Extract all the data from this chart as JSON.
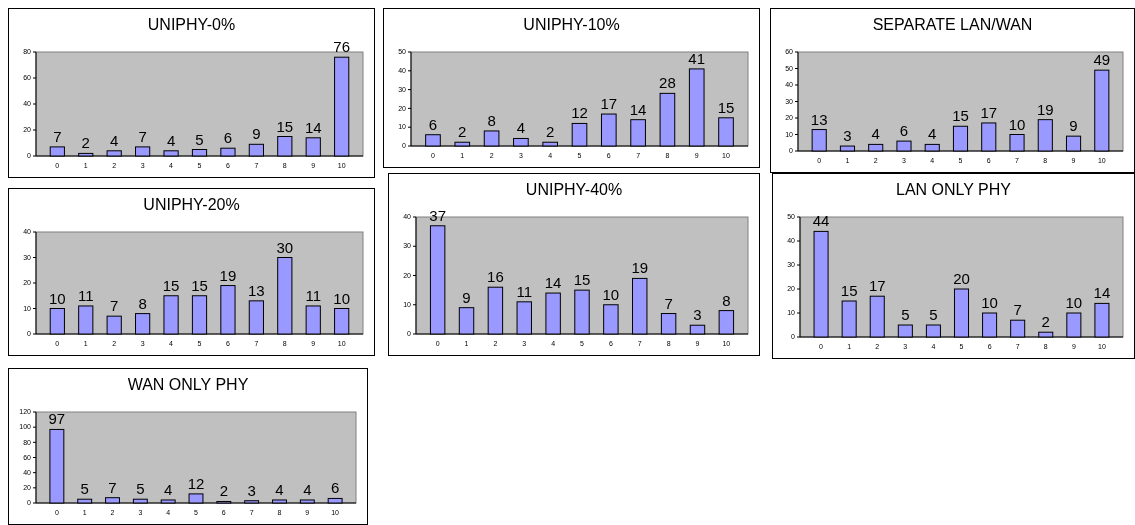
{
  "chart_data": [
    {
      "type": "bar",
      "title": "UNIPHY-0%",
      "categories": [
        "0",
        "1",
        "2",
        "3",
        "4",
        "5",
        "6",
        "7",
        "8",
        "9",
        "10"
      ],
      "values": [
        7,
        2,
        4,
        7,
        4,
        5,
        6,
        9,
        15,
        14,
        76
      ],
      "color": "#9999ff",
      "ylim": [
        0,
        80
      ],
      "yticks": [
        0,
        20,
        40,
        60,
        80
      ],
      "data_labels": true
    },
    {
      "type": "bar",
      "title": "UNIPHY-10%",
      "categories": [
        "0",
        "1",
        "2",
        "3",
        "4",
        "5",
        "6",
        "7",
        "8",
        "9",
        "10"
      ],
      "values": [
        6,
        2,
        8,
        4,
        2,
        12,
        17,
        14,
        28,
        41,
        15
      ],
      "color": "#9999ff",
      "ylim": [
        0,
        50
      ],
      "yticks": [
        0,
        10,
        20,
        30,
        40,
        50
      ],
      "data_labels": true
    },
    {
      "type": "bar",
      "title": "SEPARATE LAN/WAN",
      "categories": [
        "0",
        "1",
        "2",
        "3",
        "4",
        "5",
        "6",
        "7",
        "8",
        "9",
        "10"
      ],
      "values": [
        13,
        3,
        4,
        6,
        4,
        15,
        17,
        10,
        19,
        9,
        49
      ],
      "color": "#9999ff",
      "ylim": [
        0,
        60
      ],
      "yticks": [
        0,
        10,
        20,
        30,
        40,
        50,
        60
      ],
      "data_labels": true
    },
    {
      "type": "bar",
      "title": "UNIPHY-20%",
      "categories": [
        "0",
        "1",
        "2",
        "3",
        "4",
        "5",
        "6",
        "7",
        "8",
        "9",
        "10"
      ],
      "values": [
        10,
        11,
        7,
        8,
        15,
        15,
        19,
        13,
        30,
        11,
        10
      ],
      "color": "#9999ff",
      "ylim": [
        0,
        40
      ],
      "yticks": [
        0,
        10,
        20,
        30,
        40
      ],
      "data_labels": true
    },
    {
      "type": "bar",
      "title": "UNIPHY-40%",
      "categories": [
        "0",
        "1",
        "2",
        "3",
        "4",
        "5",
        "6",
        "7",
        "8",
        "9",
        "10"
      ],
      "values": [
        37,
        9,
        16,
        11,
        14,
        15,
        10,
        19,
        7,
        3,
        8
      ],
      "color": "#9999ff",
      "ylim": [
        0,
        40
      ],
      "yticks": [
        0,
        10,
        20,
        30,
        40
      ],
      "data_labels": true
    },
    {
      "type": "bar",
      "title": "LAN ONLY PHY",
      "categories": [
        "0",
        "1",
        "2",
        "3",
        "4",
        "5",
        "6",
        "7",
        "8",
        "9",
        "10"
      ],
      "values": [
        44,
        15,
        17,
        5,
        5,
        20,
        10,
        7,
        2,
        10,
        14
      ],
      "color": "#9999ff",
      "ylim": [
        0,
        50
      ],
      "yticks": [
        0,
        10,
        20,
        30,
        40,
        50
      ],
      "data_labels": true
    },
    {
      "type": "bar",
      "title": "WAN ONLY PHY",
      "categories": [
        "0",
        "1",
        "2",
        "3",
        "4",
        "5",
        "6",
        "7",
        "8",
        "9",
        "10"
      ],
      "values": [
        97,
        5,
        7,
        5,
        4,
        12,
        2,
        3,
        4,
        4,
        6
      ],
      "color": "#9999ff",
      "ylim": [
        0,
        120
      ],
      "yticks": [
        0,
        20,
        40,
        60,
        80,
        100,
        120
      ],
      "data_labels": true
    }
  ]
}
